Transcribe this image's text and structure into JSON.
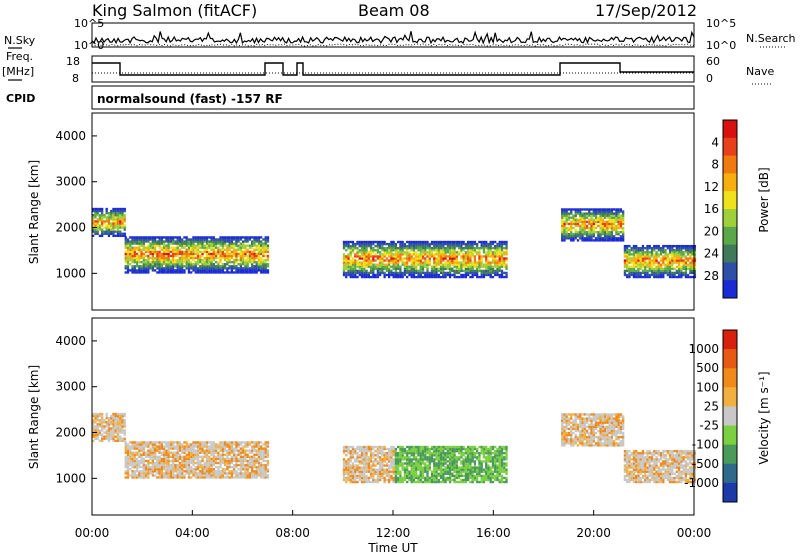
{
  "header": {
    "station": "King Salmon (fitACF)",
    "beam": "Beam 08",
    "date": "17/Sep/2012"
  },
  "strip_panels": {
    "nsky_label": "N.Sky",
    "nsearch_label": "N.Search",
    "freq_label_top": "Freq.",
    "freq_label_unit": "[MHz]",
    "nave_label": "Nave",
    "cpid_label": "CPID",
    "count_tick_high": "10^5",
    "count_tick_low": "10^0",
    "freq_tick_high": "18",
    "freq_tick_low": "8",
    "nave_tick_high": "60",
    "nave_tick_low": "0",
    "cpid_text": "normalsound (fast) -157 RF"
  },
  "chart_data": [
    {
      "type": "heatmap",
      "name": "power",
      "ylabel": "Slant Range [km]",
      "xlabel": "Time UT",
      "ylim": [
        200,
        4500
      ],
      "xlim": [
        0,
        24
      ],
      "yticks": [
        "1000",
        "2000",
        "3000",
        "4000"
      ],
      "colorbar": {
        "label": "Power [dB]",
        "ticks": [
          "4",
          "8",
          "12",
          "16",
          "20",
          "24",
          "28"
        ],
        "colors": [
          "#1a2bd6",
          "#2e4fa8",
          "#3f7a5a",
          "#5aa84a",
          "#9fd03a",
          "#f0e21a",
          "#f5b010",
          "#f07a10",
          "#e8401a",
          "#d8100e"
        ]
      },
      "echo_bands": [
        {
          "t0": 0.0,
          "t1": 1.3,
          "r0": 1800,
          "r1": 2400
        },
        {
          "t0": 1.3,
          "t1": 7.0,
          "r0": 1000,
          "r1": 1800
        },
        {
          "t0": 10.0,
          "t1": 16.5,
          "r0": 900,
          "r1": 1700
        },
        {
          "t0": 18.7,
          "t1": 21.2,
          "r0": 1700,
          "r1": 2400
        },
        {
          "t0": 21.2,
          "t1": 24.0,
          "r0": 900,
          "r1": 1600
        }
      ]
    },
    {
      "type": "heatmap",
      "name": "velocity",
      "ylabel": "Slant Range [km]",
      "xlabel": "Time UT",
      "ylim": [
        200,
        4500
      ],
      "xlim": [
        0,
        24
      ],
      "yticks": [
        "1000",
        "2000",
        "3000",
        "4000"
      ],
      "xticks": [
        "00:00",
        "04:00",
        "08:00",
        "12:00",
        "16:00",
        "20:00",
        "00:00"
      ],
      "colorbar": {
        "label": "Velocity [m s⁻¹]",
        "ticks": [
          "1000",
          "500",
          "100",
          "25",
          "-25",
          "-100",
          "-500",
          "-1000"
        ],
        "colors": [
          "#1c3ba8",
          "#2f6a8c",
          "#4a9a5a",
          "#7ad040",
          "#c8c8c8",
          "#f2b040",
          "#f08a1a",
          "#e85a14",
          "#d8200e"
        ]
      }
    }
  ]
}
